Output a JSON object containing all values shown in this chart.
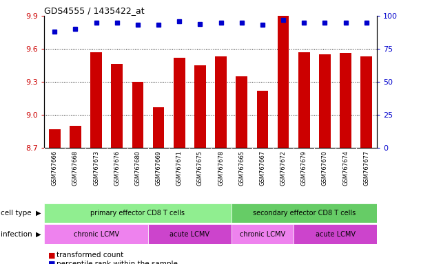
{
  "title": "GDS4555 / 1435422_at",
  "samples": [
    "GSM767666",
    "GSM767668",
    "GSM767673",
    "GSM767676",
    "GSM767680",
    "GSM767669",
    "GSM767671",
    "GSM767675",
    "GSM767678",
    "GSM767665",
    "GSM767667",
    "GSM767672",
    "GSM767679",
    "GSM767670",
    "GSM767674",
    "GSM767677"
  ],
  "bar_values": [
    8.87,
    8.9,
    9.57,
    9.46,
    9.3,
    9.07,
    9.52,
    9.45,
    9.53,
    9.35,
    9.22,
    9.9,
    9.57,
    9.55,
    9.56,
    9.53
  ],
  "percentile_values": [
    88,
    90,
    95,
    95,
    93,
    93,
    96,
    94,
    95,
    95,
    93,
    97,
    95,
    95,
    95,
    95
  ],
  "ylim_left": [
    8.7,
    9.9
  ],
  "ylim_right": [
    0,
    100
  ],
  "yticks_left": [
    8.7,
    9.0,
    9.3,
    9.6,
    9.9
  ],
  "yticks_right": [
    0,
    25,
    50,
    75,
    100
  ],
  "hlines": [
    9.0,
    9.3,
    9.6
  ],
  "bar_color": "#cc0000",
  "dot_color": "#0000cc",
  "bar_bottom": 8.7,
  "cell_type_groups": [
    {
      "label": "primary effector CD8 T cells",
      "start": 0,
      "end": 9,
      "color": "#90ee90"
    },
    {
      "label": "secondary effector CD8 T cells",
      "start": 9,
      "end": 16,
      "color": "#66cc66"
    }
  ],
  "infection_groups": [
    {
      "label": "chronic LCMV",
      "start": 0,
      "end": 5,
      "color": "#ee82ee"
    },
    {
      "label": "acute LCMV",
      "start": 5,
      "end": 9,
      "color": "#cc44cc"
    },
    {
      "label": "chronic LCMV",
      "start": 9,
      "end": 12,
      "color": "#ee82ee"
    },
    {
      "label": "acute LCMV",
      "start": 12,
      "end": 16,
      "color": "#cc44cc"
    }
  ],
  "legend_items": [
    {
      "label": "transformed count",
      "color": "#cc0000"
    },
    {
      "label": "percentile rank within the sample",
      "color": "#0000cc"
    }
  ],
  "background_color": "#ffffff",
  "tick_color_left": "#cc0000",
  "tick_color_right": "#0000cc",
  "xtick_bg": "#c8c8c8",
  "xtick_border": "#aaaaaa"
}
